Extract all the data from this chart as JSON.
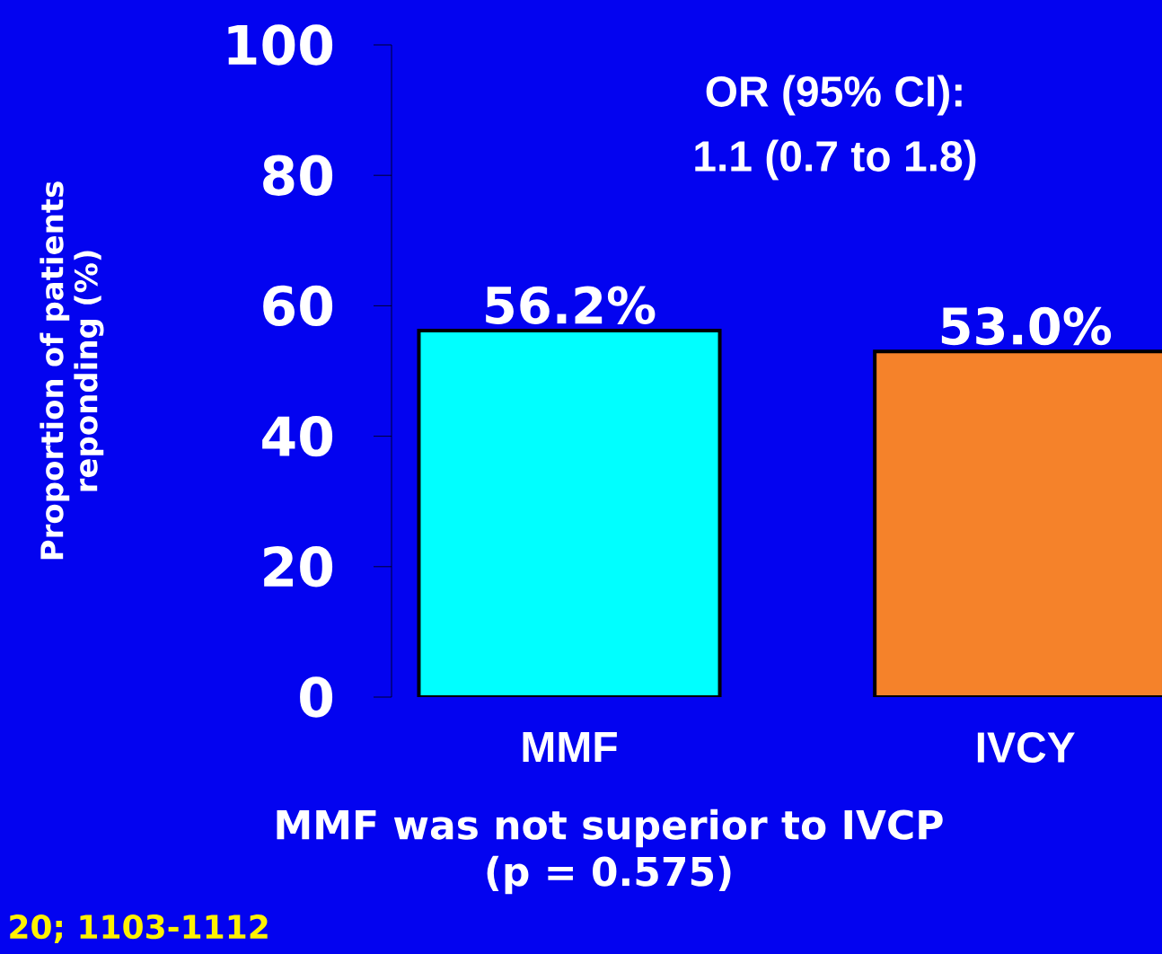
{
  "chart_data": {
    "type": "bar",
    "ylabel": "Proportion of patients reponding (%)",
    "categories": [
      "MMF",
      "IVCY"
    ],
    "values": [
      56.2,
      53.0
    ],
    "colors": [
      "#00ffff",
      "#f5822a"
    ],
    "value_labels": [
      "56.2%",
      "53.0%"
    ],
    "ylim": [
      0,
      100
    ],
    "yticks": [
      0,
      20,
      40,
      60,
      80,
      100
    ],
    "annotations": [
      "OR (95% CI):",
      "1.1 (0.7 to 1.8)",
      "MMF was not superior to IVCP",
      "(p = 0.575)",
      "20; 1103-1112"
    ]
  }
}
